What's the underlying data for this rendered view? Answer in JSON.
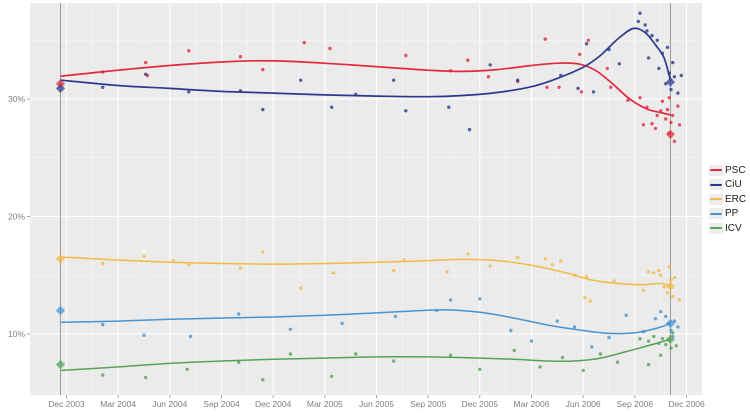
{
  "chart_data": {
    "type": "scatter",
    "title": "",
    "description": "Opinion poll results (dots) with smoothed trend lines per party; diamonds mark the 2003 and 2006 election results",
    "x_axis": {
      "tick_labels": [
        "Dec 2003",
        "Mar 2004",
        "Jun 2004",
        "Sep 2004",
        "Dec 2004",
        "Mar 2005",
        "Jun 2005",
        "Sep 2005",
        "Dec 2005",
        "Mar 2006",
        "Jun 2006",
        "Sep 2006",
        "Dec 2006"
      ],
      "tick_month_step": 3,
      "range_months": [
        -2.1,
        37.3
      ]
    },
    "y_axis": {
      "tick_labels": [
        "10%",
        "20%",
        "30%"
      ],
      "tick_values": [
        10,
        20,
        30
      ],
      "minor_tick_values": [
        5,
        15,
        25,
        35
      ],
      "range": [
        5.0,
        38.2
      ],
      "grid": true
    },
    "panel_background": "#ebebeb",
    "gridline_color": "#ffffff",
    "axis_text_color": "#7e7e7e",
    "election_line_color": "#9b9b9b",
    "election_months": [
      -0.35,
      35.07
    ],
    "legend_position": "right",
    "series": [
      {
        "name": "PSC",
        "color": "#e2293f",
        "trend": [
          [
            -0.3,
            31.95
          ],
          [
            3,
            32.45
          ],
          [
            6,
            32.85
          ],
          [
            9,
            33.15
          ],
          [
            11,
            33.25
          ],
          [
            13,
            33.2
          ],
          [
            16,
            32.95
          ],
          [
            19,
            32.65
          ],
          [
            21,
            32.45
          ],
          [
            23,
            32.35
          ],
          [
            25,
            32.5
          ],
          [
            27,
            32.85
          ],
          [
            28.5,
            33.05
          ],
          [
            29.7,
            33.0
          ],
          [
            30.7,
            32.45
          ],
          [
            31.7,
            31.3
          ],
          [
            32.7,
            30.0
          ],
          [
            33.7,
            29.15
          ],
          [
            34.5,
            28.85
          ],
          [
            35.07,
            28.65
          ]
        ],
        "polls": [
          [
            2.1,
            32.3
          ],
          [
            4.6,
            33.1
          ],
          [
            4.7,
            32.0
          ],
          [
            7.1,
            34.1
          ],
          [
            10.1,
            33.6
          ],
          [
            11.4,
            32.5
          ],
          [
            13.8,
            34.8
          ],
          [
            15.3,
            34.3
          ],
          [
            19.7,
            33.7
          ],
          [
            22.3,
            32.4
          ],
          [
            23.3,
            33.3
          ],
          [
            24.5,
            31.9
          ],
          [
            26.2,
            31.5
          ],
          [
            27.8,
            35.1
          ],
          [
            27.9,
            31.0
          ],
          [
            28.6,
            31.0
          ],
          [
            29.8,
            33.8
          ],
          [
            29.9,
            30.6
          ],
          [
            30.3,
            35.0
          ],
          [
            31.4,
            32.6
          ],
          [
            31.6,
            31.0
          ],
          [
            32.6,
            29.9
          ],
          [
            33.3,
            30.1
          ],
          [
            33.5,
            27.8
          ],
          [
            33.7,
            29.3
          ],
          [
            34.0,
            27.9
          ],
          [
            34.2,
            27.5
          ],
          [
            34.3,
            28.6
          ],
          [
            34.5,
            29.0
          ],
          [
            34.6,
            29.8
          ],
          [
            34.8,
            28.3
          ],
          [
            34.9,
            29.1
          ],
          [
            35.0,
            27.1
          ],
          [
            35.0,
            30.1
          ],
          [
            35.1,
            28.0
          ],
          [
            35.2,
            28.6
          ],
          [
            35.3,
            26.4
          ],
          [
            35.5,
            29.4
          ],
          [
            35.6,
            27.8
          ]
        ],
        "result_2003": 31.3,
        "result_2006": 27.0
      },
      {
        "name": "CiU",
        "color": "#2c3a8c",
        "trend": [
          [
            -0.3,
            31.6
          ],
          [
            3,
            31.15
          ],
          [
            6,
            30.9
          ],
          [
            9,
            30.65
          ],
          [
            12,
            30.5
          ],
          [
            15,
            30.35
          ],
          [
            18,
            30.25
          ],
          [
            21,
            30.2
          ],
          [
            23,
            30.3
          ],
          [
            25,
            30.55
          ],
          [
            27,
            31.05
          ],
          [
            28.5,
            31.75
          ],
          [
            30,
            32.7
          ],
          [
            31,
            33.7
          ],
          [
            32,
            35.1
          ],
          [
            32.9,
            36.0
          ],
          [
            33.6,
            35.65
          ],
          [
            34.2,
            34.6
          ],
          [
            34.7,
            33.5
          ],
          [
            35.07,
            31.6
          ]
        ],
        "polls": [
          [
            2.1,
            31.0
          ],
          [
            4.6,
            32.1
          ],
          [
            7.1,
            30.6
          ],
          [
            10.1,
            30.7
          ],
          [
            11.4,
            29.1
          ],
          [
            13.6,
            31.6
          ],
          [
            15.4,
            29.3
          ],
          [
            16.8,
            30.4
          ],
          [
            19.0,
            31.6
          ],
          [
            19.7,
            29.0
          ],
          [
            22.2,
            29.3
          ],
          [
            23.4,
            27.4
          ],
          [
            24.6,
            32.9
          ],
          [
            26.2,
            31.6
          ],
          [
            28.7,
            32.0
          ],
          [
            29.7,
            30.9
          ],
          [
            30.2,
            34.7
          ],
          [
            30.6,
            30.6
          ],
          [
            31.5,
            34.2
          ],
          [
            32.1,
            33.0
          ],
          [
            33.2,
            36.6
          ],
          [
            33.3,
            37.3
          ],
          [
            33.6,
            36.3
          ],
          [
            33.7,
            35.8
          ],
          [
            33.8,
            33.5
          ],
          [
            34.0,
            35.4
          ],
          [
            34.3,
            35.0
          ],
          [
            34.4,
            32.6
          ],
          [
            34.6,
            33.9
          ],
          [
            34.8,
            31.3
          ],
          [
            34.9,
            34.4
          ],
          [
            35.0,
            32.2
          ],
          [
            35.1,
            30.8
          ],
          [
            35.2,
            33.1
          ],
          [
            35.3,
            31.9
          ],
          [
            35.5,
            30.5
          ],
          [
            35.7,
            32.0
          ]
        ],
        "result_2003": 30.9,
        "result_2006": 31.45
      },
      {
        "name": "ERC",
        "color": "#f2bb47",
        "trend": [
          [
            -0.3,
            16.55
          ],
          [
            3,
            16.3
          ],
          [
            6,
            16.1
          ],
          [
            9,
            16.0
          ],
          [
            12,
            15.95
          ],
          [
            15,
            16.0
          ],
          [
            18,
            16.1
          ],
          [
            21,
            16.25
          ],
          [
            23,
            16.35
          ],
          [
            25,
            16.25
          ],
          [
            27,
            15.85
          ],
          [
            29,
            15.2
          ],
          [
            30.5,
            14.6
          ],
          [
            32,
            14.3
          ],
          [
            33.5,
            14.2
          ],
          [
            34.5,
            14.3
          ],
          [
            35.07,
            14.1
          ]
        ],
        "polls": [
          [
            2.1,
            16.0
          ],
          [
            4.5,
            16.6
          ],
          [
            6.2,
            16.2
          ],
          [
            7.1,
            15.9
          ],
          [
            10.1,
            15.6
          ],
          [
            11.4,
            17.0
          ],
          [
            13.6,
            13.9
          ],
          [
            15.5,
            15.2
          ],
          [
            19.0,
            15.4
          ],
          [
            19.6,
            16.3
          ],
          [
            22.1,
            15.3
          ],
          [
            23.3,
            16.8
          ],
          [
            24.6,
            15.8
          ],
          [
            26.2,
            16.5
          ],
          [
            27.8,
            16.4
          ],
          [
            28.2,
            15.9
          ],
          [
            28.7,
            16.2
          ],
          [
            29.5,
            15.0
          ],
          [
            30.1,
            13.1
          ],
          [
            30.2,
            14.9
          ],
          [
            30.4,
            12.8
          ],
          [
            31.8,
            14.5
          ],
          [
            33.5,
            13.7
          ],
          [
            33.8,
            15.3
          ],
          [
            34.1,
            15.2
          ],
          [
            34.4,
            15.4
          ],
          [
            34.5,
            15.0
          ],
          [
            34.7,
            14.0
          ],
          [
            34.9,
            13.5
          ],
          [
            35.0,
            15.7
          ],
          [
            35.1,
            14.6
          ],
          [
            35.2,
            13.2
          ],
          [
            35.3,
            14.8
          ],
          [
            35.6,
            12.9
          ]
        ],
        "result_2003": 16.4,
        "result_2006": 14.05
      },
      {
        "name": "PP",
        "color": "#4694d3",
        "trend": [
          [
            -0.3,
            11.0
          ],
          [
            3,
            11.1
          ],
          [
            6,
            11.25
          ],
          [
            9,
            11.35
          ],
          [
            12,
            11.45
          ],
          [
            15,
            11.6
          ],
          [
            18,
            11.8
          ],
          [
            20,
            11.95
          ],
          [
            22,
            12.05
          ],
          [
            24,
            11.85
          ],
          [
            26,
            11.35
          ],
          [
            28,
            10.75
          ],
          [
            30,
            10.3
          ],
          [
            31.5,
            10.05
          ],
          [
            33,
            10.1
          ],
          [
            34.3,
            10.5
          ],
          [
            35.07,
            10.9
          ]
        ],
        "polls": [
          [
            2.1,
            10.8
          ],
          [
            4.5,
            9.9
          ],
          [
            7.2,
            9.8
          ],
          [
            10.0,
            11.7
          ],
          [
            13.0,
            10.4
          ],
          [
            16.0,
            10.9
          ],
          [
            19.1,
            11.5
          ],
          [
            21.5,
            12.0
          ],
          [
            22.3,
            12.9
          ],
          [
            24.0,
            13.0
          ],
          [
            25.8,
            10.3
          ],
          [
            27.0,
            9.4
          ],
          [
            28.5,
            11.1
          ],
          [
            29.5,
            10.6
          ],
          [
            30.5,
            8.9
          ],
          [
            31.5,
            9.7
          ],
          [
            32.5,
            11.6
          ],
          [
            33.5,
            10.2
          ],
          [
            34.2,
            11.3
          ],
          [
            34.5,
            11.9
          ],
          [
            34.8,
            11.5
          ],
          [
            35.0,
            10.9
          ],
          [
            35.1,
            10.3
          ],
          [
            35.2,
            9.8
          ],
          [
            35.3,
            11.1
          ],
          [
            35.5,
            10.6
          ]
        ],
        "result_2003": 12.0,
        "result_2006": 10.9
      },
      {
        "name": "ICV",
        "color": "#55a355",
        "trend": [
          [
            -0.3,
            6.9
          ],
          [
            3,
            7.2
          ],
          [
            6,
            7.5
          ],
          [
            9,
            7.7
          ],
          [
            12,
            7.85
          ],
          [
            15,
            7.95
          ],
          [
            18,
            8.05
          ],
          [
            21,
            8.05
          ],
          [
            24,
            7.95
          ],
          [
            26,
            7.85
          ],
          [
            28,
            7.7
          ],
          [
            29.5,
            7.7
          ],
          [
            31,
            7.95
          ],
          [
            32.5,
            8.5
          ],
          [
            34,
            9.1
          ],
          [
            35.07,
            9.55
          ]
        ],
        "polls": [
          [
            2.1,
            6.5
          ],
          [
            4.6,
            6.3
          ],
          [
            7.0,
            7.0
          ],
          [
            10.0,
            7.6
          ],
          [
            11.4,
            6.1
          ],
          [
            13.0,
            8.3
          ],
          [
            15.4,
            6.4
          ],
          [
            16.8,
            8.3
          ],
          [
            19.0,
            7.7
          ],
          [
            22.3,
            8.2
          ],
          [
            24.0,
            7.0
          ],
          [
            26.0,
            8.6
          ],
          [
            27.5,
            7.2
          ],
          [
            28.8,
            8.0
          ],
          [
            30.0,
            6.9
          ],
          [
            31.0,
            8.3
          ],
          [
            32.0,
            7.6
          ],
          [
            33.3,
            9.6
          ],
          [
            33.8,
            9.4
          ],
          [
            33.8,
            7.4
          ],
          [
            34.1,
            9.8
          ],
          [
            34.4,
            9.2
          ],
          [
            34.5,
            8.2
          ],
          [
            34.6,
            9.6
          ],
          [
            34.8,
            9.1
          ],
          [
            35.0,
            9.5
          ],
          [
            35.1,
            8.8
          ],
          [
            35.2,
            10.1
          ],
          [
            35.4,
            9.0
          ]
        ],
        "result_2003": 7.4,
        "result_2006": 9.55
      }
    ]
  }
}
